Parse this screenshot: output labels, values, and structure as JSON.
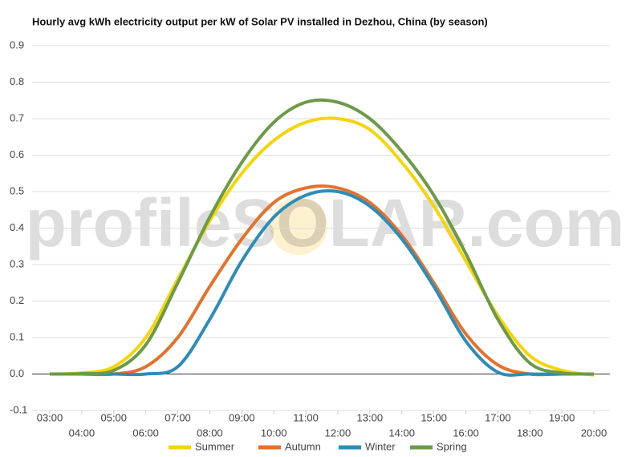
{
  "chart_data": {
    "type": "line",
    "title": "Hourly avg kWh electricity output per kW of Solar PV installed in Dezhou, China (by season)",
    "watermark": "profileSOLAR.com",
    "categories": [
      "03:00",
      "04:00",
      "05:00",
      "06:00",
      "07:00",
      "08:00",
      "09:00",
      "10:00",
      "11:00",
      "12:00",
      "13:00",
      "14:00",
      "15:00",
      "16:00",
      "17:00",
      "18:00",
      "19:00",
      "20:00"
    ],
    "series": [
      {
        "name": "Summer",
        "color": "#f5d50a",
        "values": [
          0,
          0.003,
          0.02,
          0.1,
          0.26,
          0.42,
          0.55,
          0.64,
          0.69,
          0.7,
          0.67,
          0.58,
          0.46,
          0.31,
          0.16,
          0.05,
          0.01,
          -0.003
        ]
      },
      {
        "name": "Autumn",
        "color": "#e4722b",
        "values": [
          0,
          0,
          0,
          0.02,
          0.1,
          0.24,
          0.37,
          0.47,
          0.51,
          0.51,
          0.47,
          0.38,
          0.25,
          0.11,
          0.025,
          0,
          0,
          0
        ]
      },
      {
        "name": "Winter",
        "color": "#2e8cb8",
        "values": [
          0,
          0,
          0,
          0,
          0.02,
          0.15,
          0.31,
          0.43,
          0.49,
          0.5,
          0.46,
          0.37,
          0.24,
          0.09,
          0.005,
          0,
          0,
          0
        ]
      },
      {
        "name": "Spring",
        "color": "#6c9a49",
        "values": [
          0,
          0.001,
          0.01,
          0.08,
          0.25,
          0.43,
          0.58,
          0.69,
          0.745,
          0.745,
          0.7,
          0.61,
          0.49,
          0.33,
          0.15,
          0.03,
          0.003,
          0
        ]
      }
    ],
    "ylim": [
      -0.1,
      0.9
    ],
    "yticks": [
      -0.1,
      {
        "value": 0,
        "label": "0.0"
      },
      0.1,
      0.2,
      0.3,
      0.4,
      0.5,
      0.6,
      0.7,
      0.8,
      0.9
    ],
    "grid": true,
    "legend": "bottom"
  }
}
